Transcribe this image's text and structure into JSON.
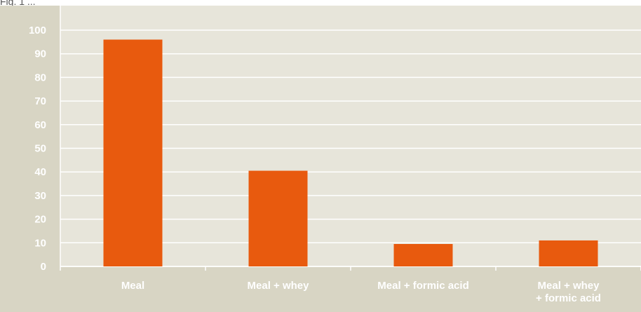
{
  "caption": "Fig. 1 ...",
  "colors": {
    "bar": "#e85a0e",
    "grid": "#ffffff",
    "plot_background": "#e7e5da",
    "frame_background": "#d8d5c4",
    "label": "#ffffff"
  },
  "chart_data": {
    "type": "bar",
    "categories": [
      "Meal",
      "Meal + whey",
      "Meal + formic acid",
      "Meal + whey\n+ formic acid"
    ],
    "values": [
      96,
      40.5,
      9.5,
      11
    ],
    "title": "",
    "xlabel": "",
    "ylabel": "",
    "ylim": [
      0,
      100
    ],
    "yticks": [
      0,
      10,
      20,
      30,
      40,
      50,
      60,
      70,
      80,
      90,
      100
    ],
    "grid": true,
    "legend": false
  }
}
